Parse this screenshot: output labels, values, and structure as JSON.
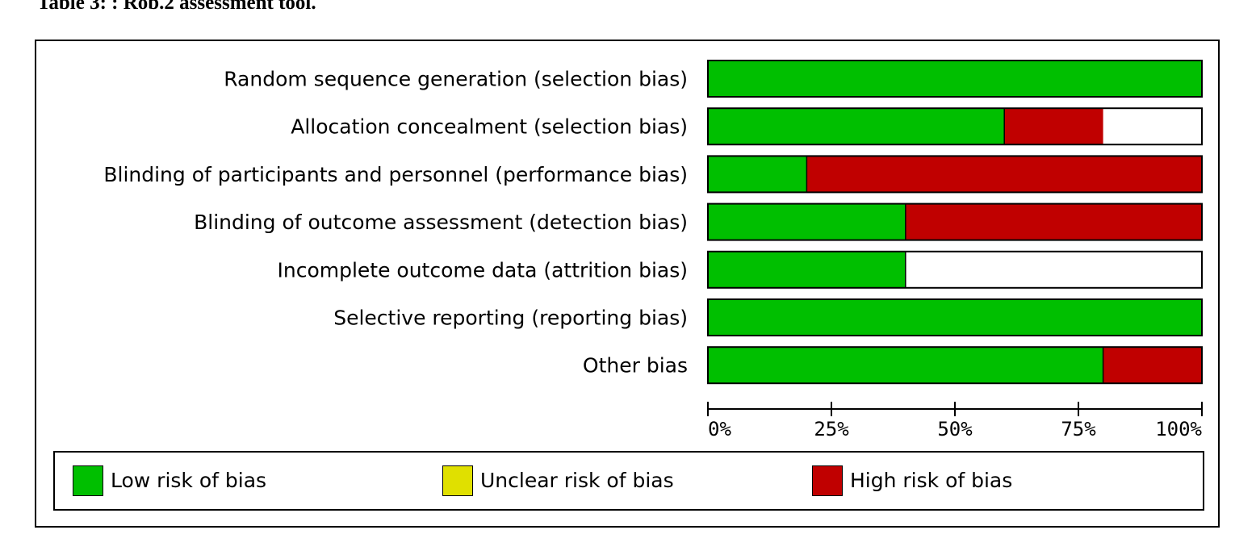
{
  "caption": "Table 3: : Rob.2 assessment tool.",
  "colors": {
    "low": "#00bf00",
    "unclear": "#e0e000",
    "high": "#c00000",
    "empty": "#ffffff"
  },
  "chart_data": {
    "type": "bar",
    "orientation": "horizontal",
    "stacked": true,
    "categories": [
      "Random sequence generation (selection bias)",
      "Allocation concealment (selection bias)",
      "Blinding of participants and personnel (performance bias)",
      "Blinding of outcome assessment (detection bias)",
      "Incomplete outcome data (attrition bias)",
      "Selective reporting (reporting bias)",
      "Other bias"
    ],
    "series": [
      {
        "name": "Low risk of bias",
        "color": "#00bf00",
        "values": [
          100,
          60,
          20,
          40,
          40,
          100,
          80
        ]
      },
      {
        "name": "Unclear risk of bias",
        "color": "#e0e000",
        "values": [
          0,
          0,
          0,
          0,
          0,
          0,
          0
        ]
      },
      {
        "name": "High risk of bias",
        "color": "#c00000",
        "values": [
          0,
          20,
          80,
          60,
          0,
          0,
          20
        ]
      }
    ],
    "xlim": [
      0,
      100
    ],
    "xticks": [
      0,
      25,
      50,
      75,
      100
    ],
    "xtick_labels": [
      "0%",
      "25%",
      "50%",
      "75%",
      "100%"
    ],
    "grid": false,
    "legend_position": "bottom"
  },
  "legend": {
    "items": [
      {
        "label": "Low risk of bias",
        "color": "#00bf00"
      },
      {
        "label": "Unclear risk of bias",
        "color": "#e0e000"
      },
      {
        "label": "High risk of bias",
        "color": "#c00000"
      }
    ]
  }
}
